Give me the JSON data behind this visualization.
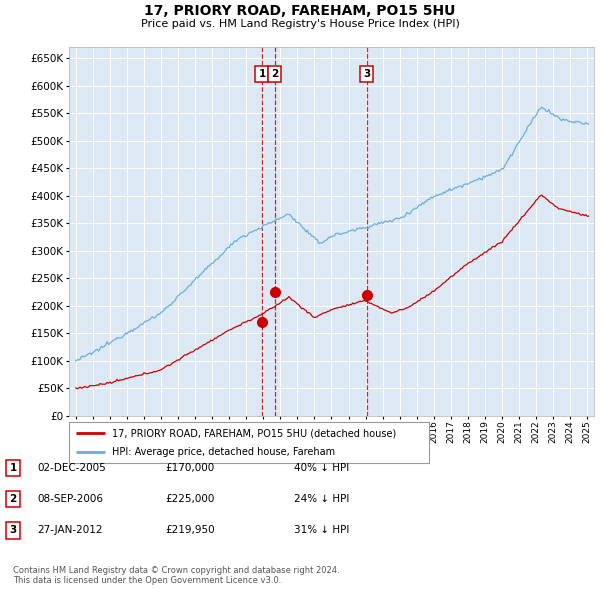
{
  "title": "17, PRIORY ROAD, FAREHAM, PO15 5HU",
  "subtitle": "Price paid vs. HM Land Registry's House Price Index (HPI)",
  "plot_bg_color": "#dce9f5",
  "ylim": [
    0,
    670000
  ],
  "yticks": [
    0,
    50000,
    100000,
    150000,
    200000,
    250000,
    300000,
    350000,
    400000,
    450000,
    500000,
    550000,
    600000,
    650000
  ],
  "xlim_left": 1994.6,
  "xlim_right": 2025.4,
  "transactions": [
    {
      "num": 1,
      "date_str": "02-DEC-2005",
      "date_x": 2005.92,
      "price": 170000,
      "price_str": "£170,000",
      "hpi_pct": "40% ↓ HPI"
    },
    {
      "num": 2,
      "date_str": "08-SEP-2006",
      "date_x": 2006.67,
      "price": 225000,
      "price_str": "£225,000",
      "hpi_pct": "24% ↓ HPI"
    },
    {
      "num": 3,
      "date_str": "27-JAN-2012",
      "date_x": 2012.07,
      "price": 219950,
      "price_str": "£219,950",
      "hpi_pct": "31% ↓ HPI"
    }
  ],
  "legend_property_label": "17, PRIORY ROAD, FAREHAM, PO15 5HU (detached house)",
  "legend_hpi_label": "HPI: Average price, detached house, Fareham",
  "footnote_line1": "Contains HM Land Registry data © Crown copyright and database right 2024.",
  "footnote_line2": "This data is licensed under the Open Government Licence v3.0.",
  "red_color": "#cc0000",
  "blue_color": "#6baed6",
  "grid_color": "#ffffff",
  "title_fontsize": 10,
  "subtitle_fontsize": 8
}
